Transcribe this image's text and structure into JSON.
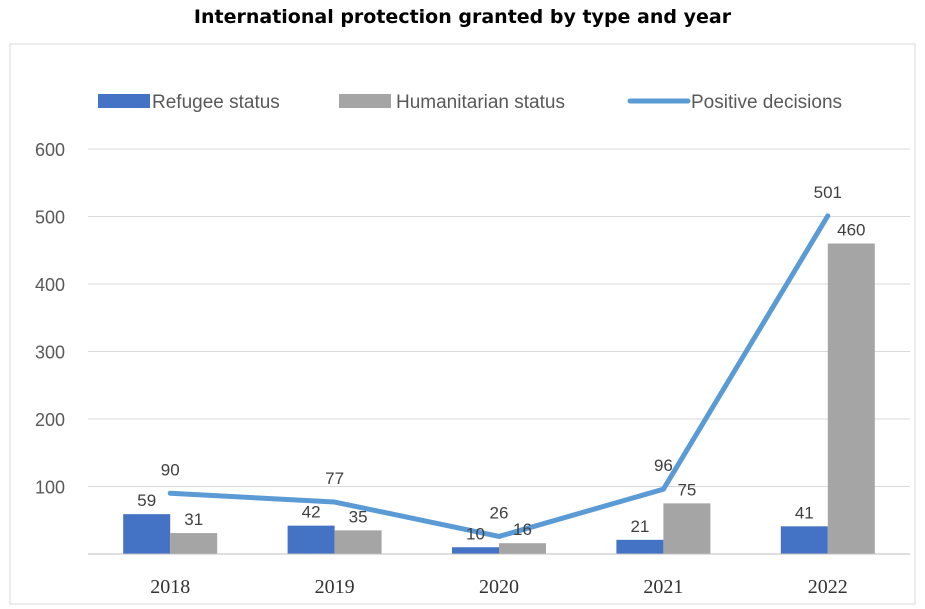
{
  "chart_data": {
    "type": "bar",
    "title": "International protection granted by type and year",
    "categories": [
      "2018",
      "2019",
      "2020",
      "2021",
      "2022"
    ],
    "series": [
      {
        "name": "Refugee status",
        "kind": "bar",
        "color": "#4472C4",
        "values": [
          59,
          42,
          10,
          21,
          41
        ]
      },
      {
        "name": "Humanitarian status",
        "kind": "bar",
        "color": "#A5A5A5",
        "values": [
          31,
          35,
          16,
          75,
          460
        ]
      },
      {
        "name": "Positive decisions",
        "kind": "line",
        "color": "#5B9BD5",
        "values": [
          90,
          77,
          26,
          96,
          501
        ]
      }
    ],
    "y_ticks": [
      "100",
      "200",
      "300",
      "400",
      "500",
      "600"
    ],
    "ylim": [
      0,
      600
    ],
    "grid": true,
    "legend_position": "top"
  }
}
